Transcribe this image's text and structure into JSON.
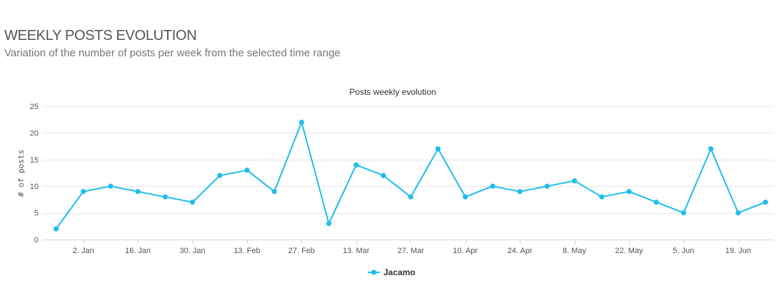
{
  "header": {
    "title": "WEEKLY POSTS EVOLUTION",
    "subtitle": "Variation of the number of posts per week from the selected time range"
  },
  "chart_data": {
    "type": "line",
    "title": "Posts weekly evolution",
    "xlabel": "",
    "ylabel": "# of posts",
    "ylim": [
      0,
      25
    ],
    "yticks": [
      0,
      5,
      10,
      15,
      20,
      25
    ],
    "grid": true,
    "legend_position": "bottom-center",
    "x_tick_labels": [
      "2. Jan",
      "16. Jan",
      "30. Jan",
      "13. Feb",
      "27. Feb",
      "13. Mar",
      "27. Mar",
      "10. Apr",
      "24. Apr",
      "8. May",
      "22. May",
      "5. Jun",
      "19. Jun"
    ],
    "x": [
      "2016-12-26",
      "2017-01-02",
      "2017-01-09",
      "2017-01-16",
      "2017-01-23",
      "2017-01-30",
      "2017-02-06",
      "2017-02-13",
      "2017-02-20",
      "2017-02-27",
      "2017-03-06",
      "2017-03-13",
      "2017-03-20",
      "2017-03-27",
      "2017-04-03",
      "2017-04-10",
      "2017-04-17",
      "2017-04-24",
      "2017-05-01",
      "2017-05-08",
      "2017-05-15",
      "2017-05-22",
      "2017-05-29",
      "2017-06-05",
      "2017-06-12",
      "2017-06-19",
      "2017-06-26"
    ],
    "series": [
      {
        "name": "Jacamo",
        "color": "#1ebeec",
        "values": [
          2,
          9,
          10,
          9,
          8,
          7,
          12,
          13,
          9,
          22,
          3,
          14,
          12,
          8,
          17,
          8,
          10,
          9,
          10,
          11,
          8,
          9,
          7,
          5,
          17,
          5,
          7
        ]
      }
    ]
  }
}
